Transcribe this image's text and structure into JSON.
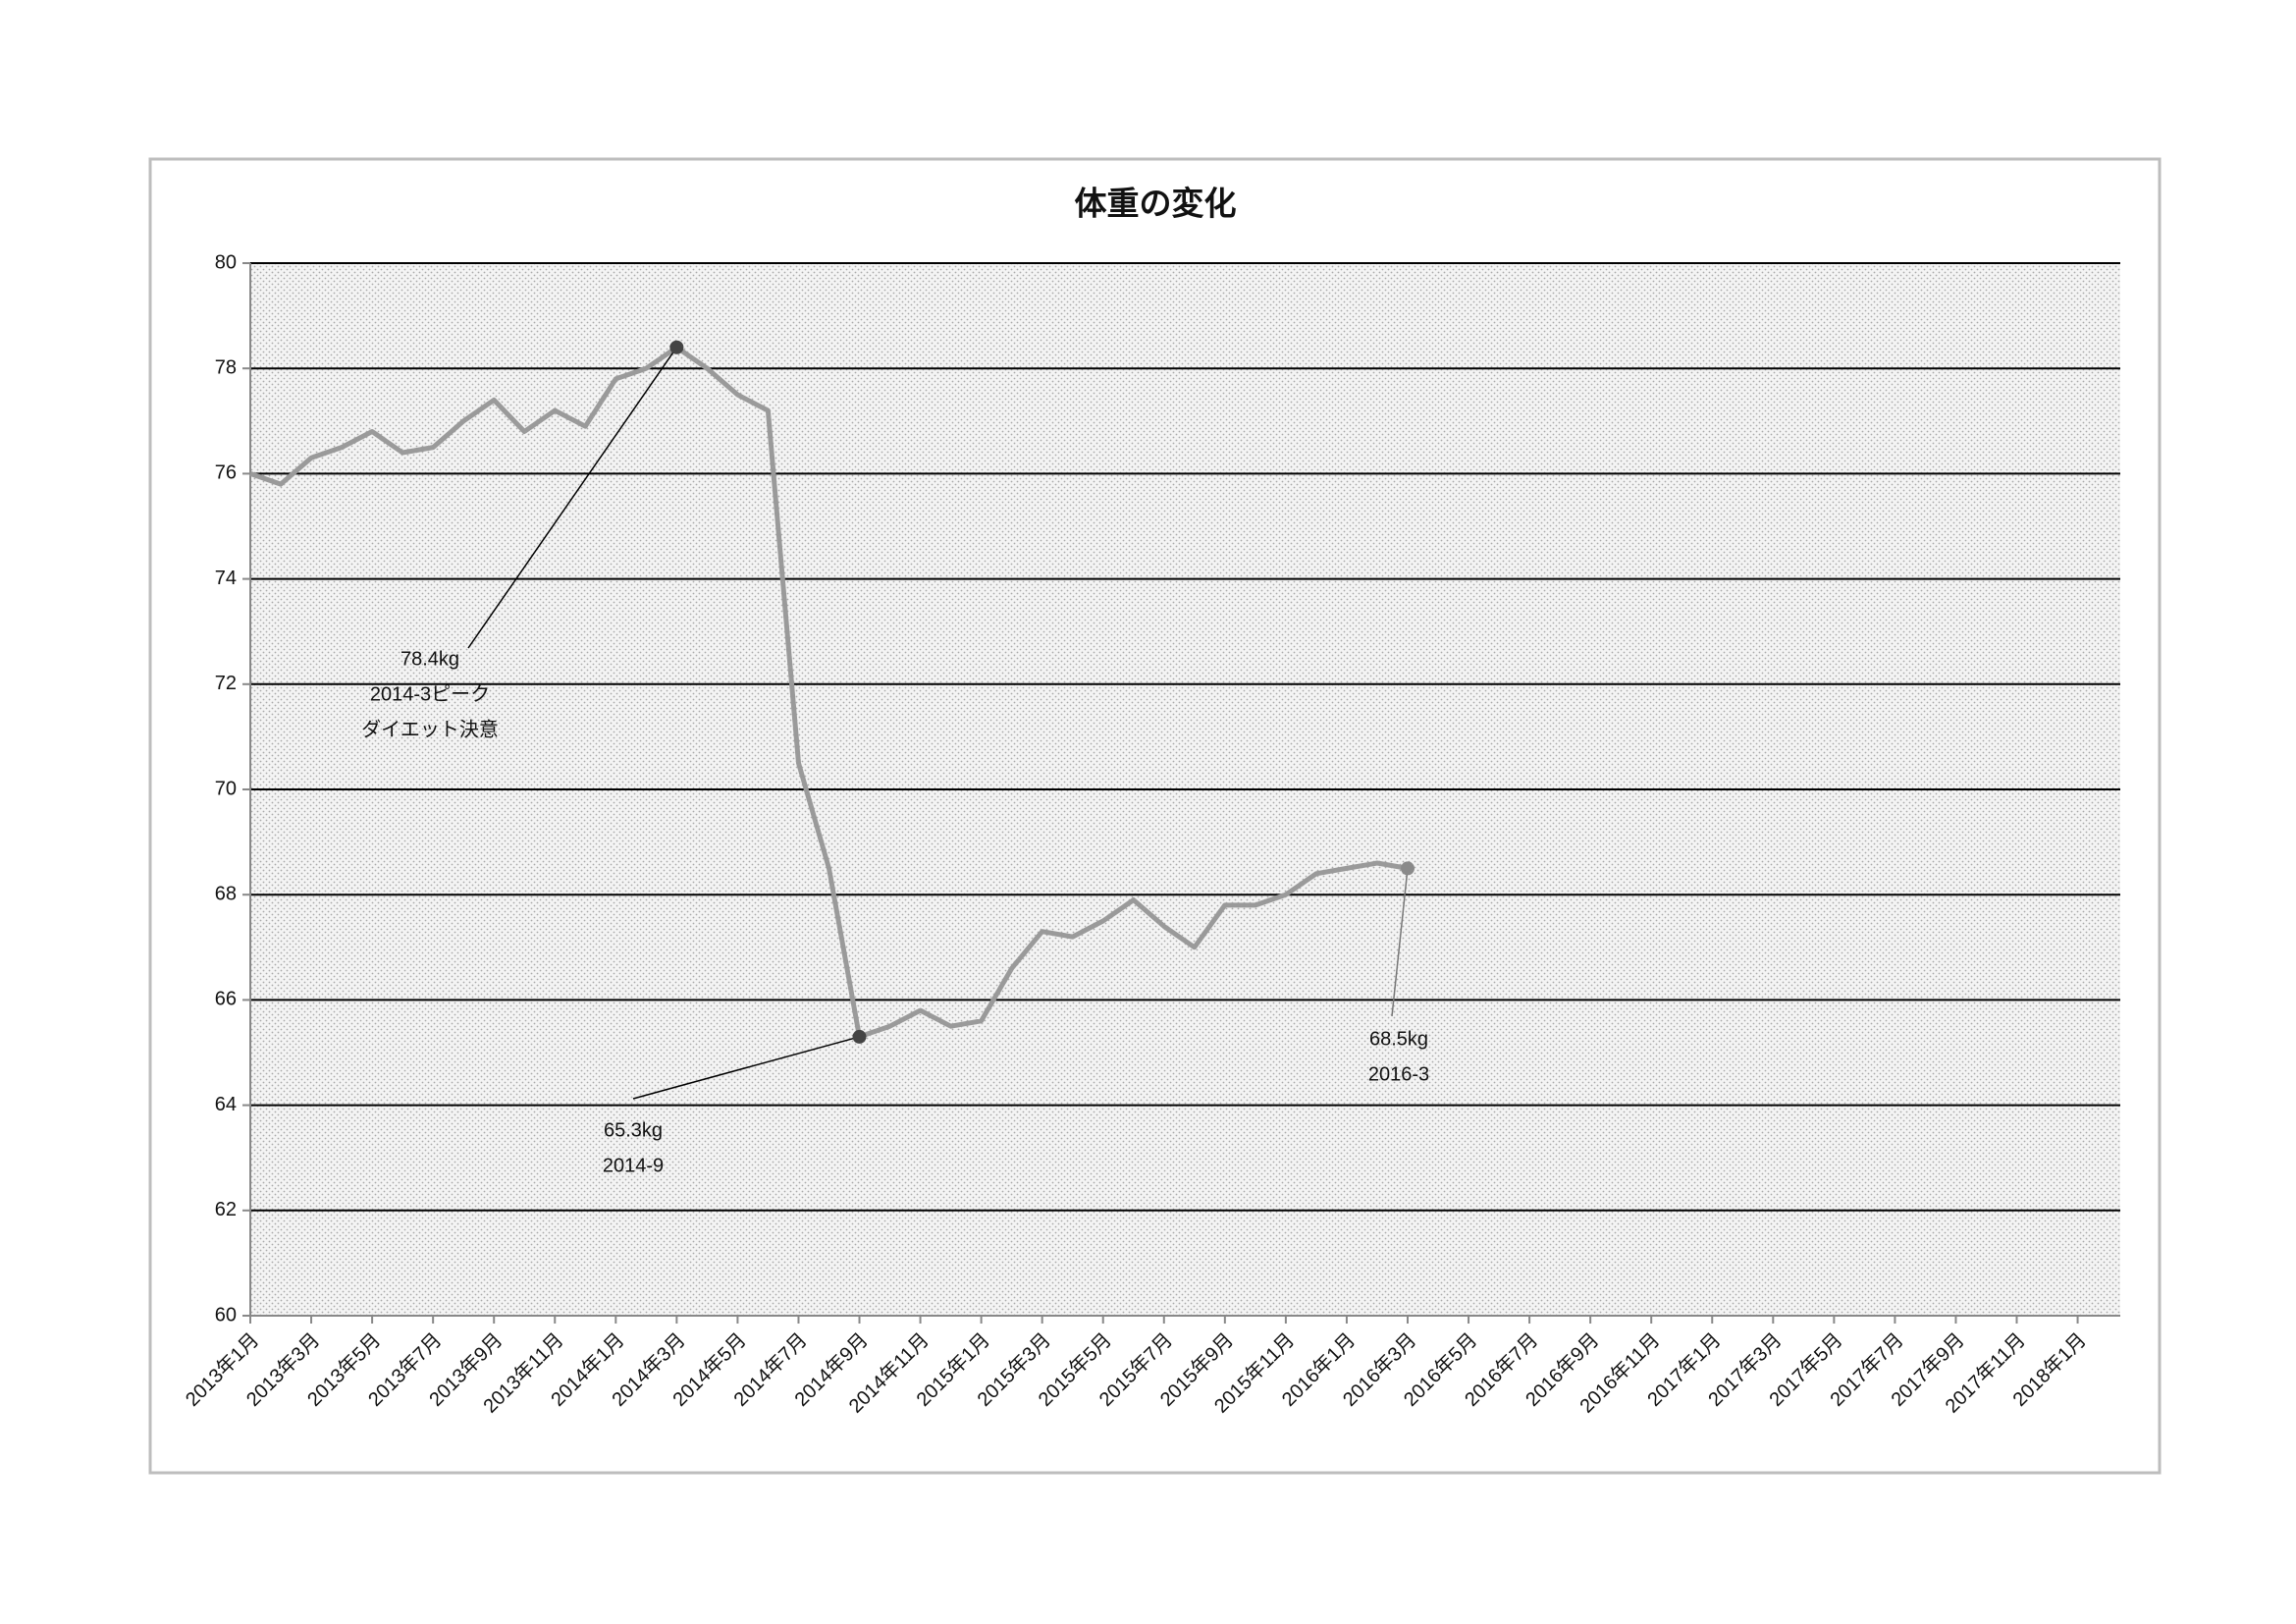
{
  "chart_data": {
    "type": "line",
    "title": "体重の変化",
    "categories": [
      "2013年1月",
      null,
      "2013年3月",
      null,
      "2013年5月",
      null,
      "2013年7月",
      null,
      "2013年9月",
      null,
      "2013年11月",
      null,
      "2014年1月",
      null,
      "2014年3月",
      null,
      "2014年5月",
      null,
      "2014年7月",
      null,
      "2014年9月",
      null,
      "2014年11月",
      null,
      "2015年1月",
      null,
      "2015年3月",
      null,
      "2015年5月",
      null,
      "2015年7月",
      null,
      "2015年9月",
      null,
      "2015年11月",
      null,
      "2016年1月",
      null,
      "2016年3月",
      null,
      "2016年5月",
      null,
      "2016年7月",
      null,
      "2016年9月",
      null,
      "2016年11月",
      null,
      "2017年1月",
      null,
      "2017年3月",
      null,
      "2017年5月",
      null,
      "2017年7月",
      null,
      "2017年9月",
      null,
      "2017年11月",
      null,
      "2018年1月",
      null
    ],
    "series": [
      {
        "color": "#9a9a9a",
        "values": [
          76.0,
          75.8,
          76.3,
          76.5,
          76.8,
          76.4,
          76.5,
          77.0,
          77.4,
          76.8,
          77.2,
          76.9,
          77.8,
          78.0,
          78.4,
          78.0,
          77.5,
          77.2,
          70.5,
          68.5,
          65.3,
          65.5,
          65.8,
          65.5,
          65.6,
          66.6,
          67.3,
          67.2,
          67.5,
          67.9,
          67.4,
          67.0,
          67.8,
          67.8,
          68.0,
          68.4,
          68.5,
          68.6,
          68.5,
          null,
          null,
          null,
          null,
          null,
          null,
          null,
          null,
          null,
          null,
          null,
          null,
          null,
          null,
          null,
          null,
          null,
          null,
          null,
          null,
          null,
          null,
          null
        ]
      }
    ],
    "ylim": [
      60,
      80
    ],
    "yticks": [
      60,
      62,
      64,
      66,
      68,
      70,
      72,
      74,
      76,
      78,
      80
    ],
    "grid": true,
    "annotations": [
      {
        "x": "2014年3月",
        "lines": [
          "78.4kg",
          "2014-3ピーク",
          "ダイエット決意"
        ],
        "marker_color": "#444444"
      },
      {
        "x": "2014年9月",
        "lines": [
          "65.3kg",
          "2014-9"
        ],
        "marker_color": "#444444"
      },
      {
        "x": "2016年3月",
        "lines": [
          "68.5kg",
          "2016-3"
        ],
        "marker_color": "#8a8a8a"
      }
    ]
  }
}
